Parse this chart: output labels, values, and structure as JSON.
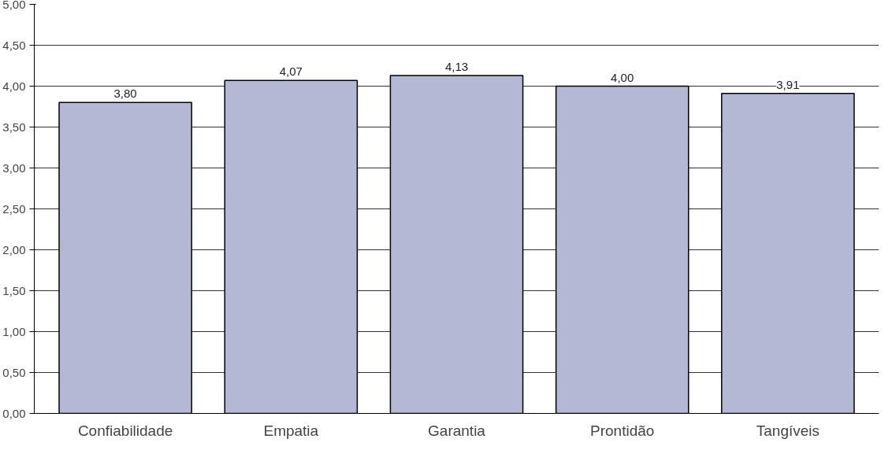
{
  "chart_data": {
    "type": "bar",
    "categories": [
      "Confiabilidade",
      "Empatia",
      "Garantia",
      "Prontidão",
      "Tangíveis"
    ],
    "values": [
      3.8,
      4.07,
      4.13,
      4.0,
      3.91
    ],
    "value_labels": [
      "3,80",
      "4,07",
      "4,13",
      "4,00",
      "3,91"
    ],
    "color": "#b4b8d4",
    "ylim": [
      0,
      5
    ],
    "yticks": [
      {
        "value": 0,
        "label": "0,00"
      },
      {
        "value": 0.5,
        "label": "0,50"
      },
      {
        "value": 1,
        "label": "1,00"
      },
      {
        "value": 1.5,
        "label": "1,50"
      },
      {
        "value": 2,
        "label": "2,00"
      },
      {
        "value": 2.5,
        "label": "2,50"
      },
      {
        "value": 3,
        "label": "3,00"
      },
      {
        "value": 3.5,
        "label": "3,50"
      },
      {
        "value": 4,
        "label": "4,00"
      },
      {
        "value": 4.5,
        "label": "4,50"
      },
      {
        "value": 5,
        "label": "5,00"
      }
    ],
    "grid": "y"
  }
}
